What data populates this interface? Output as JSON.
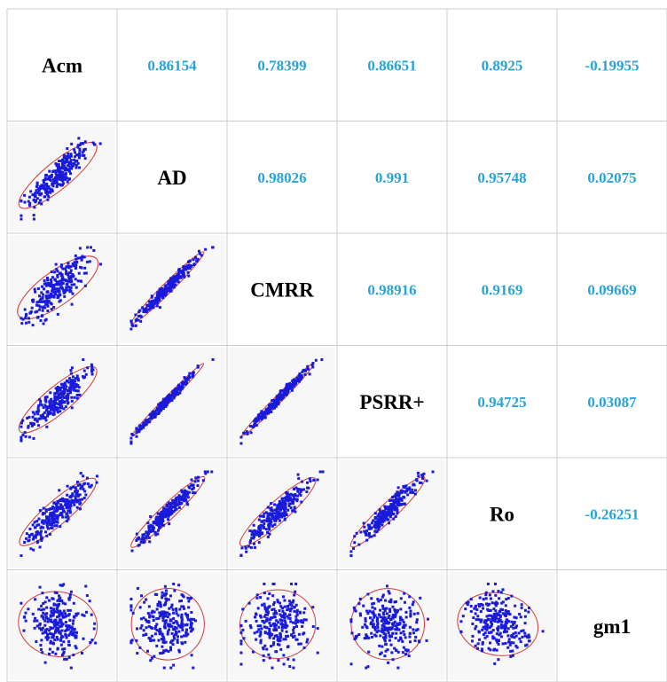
{
  "chart_data": {
    "type": "scatter-matrix",
    "variables": [
      "Acm",
      "AD",
      "CMRR",
      "PSRR+",
      "Ro",
      "gm1"
    ],
    "correlations": [
      {
        "row": 0,
        "col": 1,
        "value": "0.86154"
      },
      {
        "row": 0,
        "col": 2,
        "value": "0.78399"
      },
      {
        "row": 0,
        "col": 3,
        "value": "0.86651"
      },
      {
        "row": 0,
        "col": 4,
        "value": "0.8925"
      },
      {
        "row": 0,
        "col": 5,
        "value": "-0.19955"
      },
      {
        "row": 1,
        "col": 2,
        "value": "0.98026"
      },
      {
        "row": 1,
        "col": 3,
        "value": "0.991"
      },
      {
        "row": 1,
        "col": 4,
        "value": "0.95748"
      },
      {
        "row": 1,
        "col": 5,
        "value": "0.02075"
      },
      {
        "row": 2,
        "col": 3,
        "value": "0.98916"
      },
      {
        "row": 2,
        "col": 4,
        "value": "0.9169"
      },
      {
        "row": 2,
        "col": 5,
        "value": "0.09669"
      },
      {
        "row": 3,
        "col": 4,
        "value": "0.94725"
      },
      {
        "row": 3,
        "col": 5,
        "value": "0.03087"
      },
      {
        "row": 4,
        "col": 5,
        "value": "-0.26251"
      }
    ],
    "lower_panels": "scatter with confidence ellipse",
    "point_color": "#1a1adb",
    "ellipse_color": "#d23a3a",
    "value_color": "#27a3d8",
    "grid_color": "#cccccc",
    "panel_background": "#f7f7f7"
  }
}
